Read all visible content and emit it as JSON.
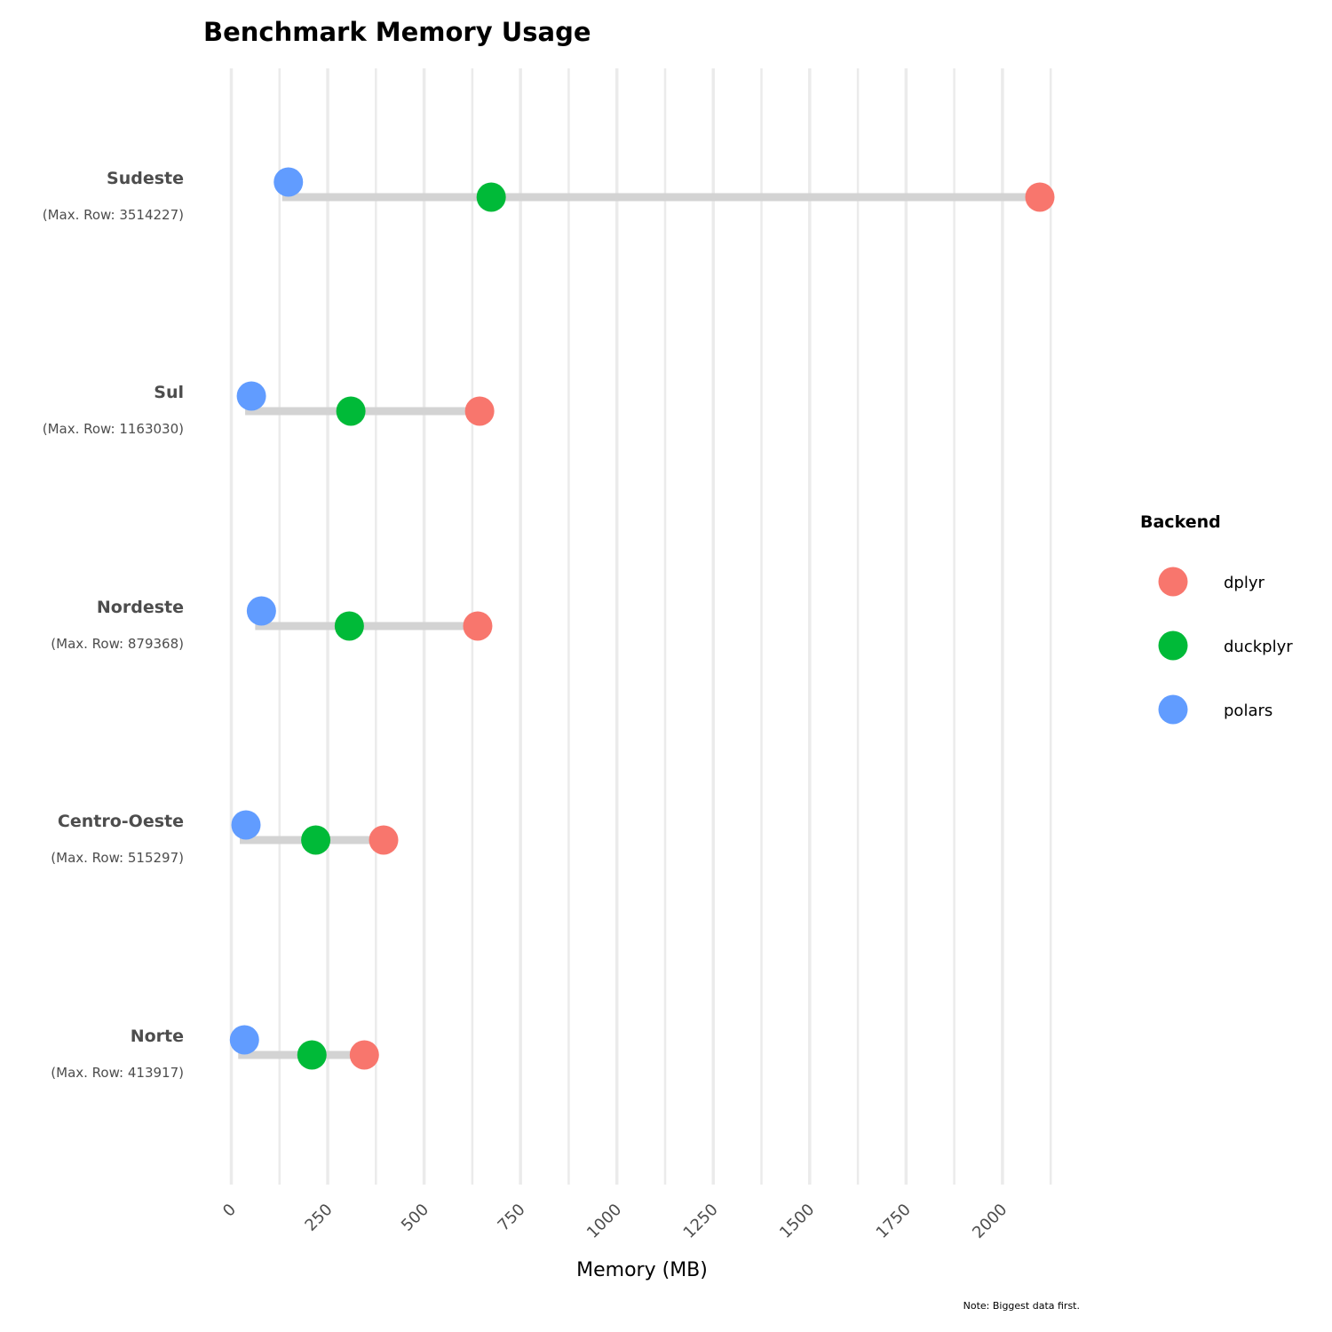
{
  "chart_data": {
    "type": "dumbbell",
    "title": "Benchmark Memory Usage",
    "xlabel": "Memory (MB)",
    "ylabel": "",
    "xlim": [
      -30,
      2170
    ],
    "xticks": [
      0,
      250,
      500,
      750,
      1000,
      1250,
      1500,
      1750,
      2000
    ],
    "grid": true,
    "legend": {
      "title": "Backend",
      "placement": "right"
    },
    "caption": "Note: Biggest data first.",
    "categories": [
      {
        "name": "Sudeste",
        "sub": "(Max. Row: 3514227)"
      },
      {
        "name": "Sul",
        "sub": "(Max. Row: 1163030)"
      },
      {
        "name": "Nordeste",
        "sub": "(Max. Row: 879368)"
      },
      {
        "name": "Centro-Oeste",
        "sub": "(Max. Row: 515297)"
      },
      {
        "name": "Norte",
        "sub": "(Max. Row: 413917)"
      }
    ],
    "series": [
      {
        "name": "dplyr",
        "color": "#F8766D",
        "values": [
          2097,
          644,
          639,
          395,
          345
        ]
      },
      {
        "name": "duckplyr",
        "color": "#00BA38",
        "values": [
          674,
          310,
          306,
          219,
          209
        ]
      },
      {
        "name": "polars",
        "color": "#619CFF",
        "values": [
          148,
          52,
          78,
          38,
          34
        ]
      }
    ]
  }
}
